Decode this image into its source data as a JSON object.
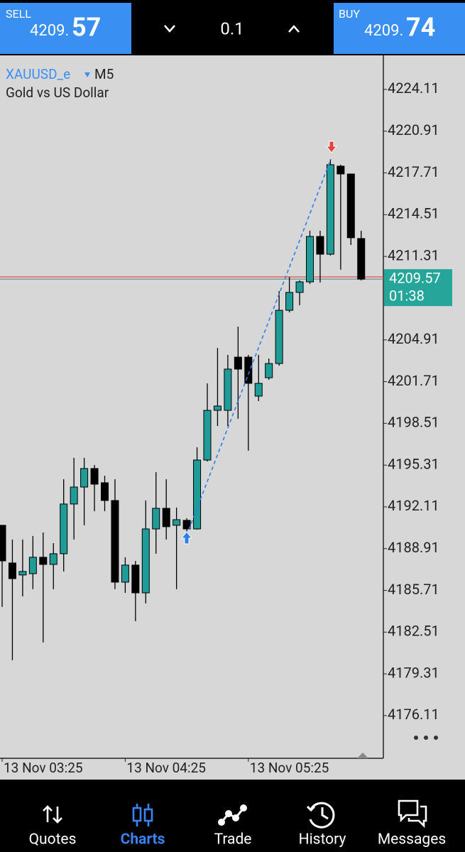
{
  "header": {
    "sell": {
      "label": "SELL",
      "price_prefix": "4209.",
      "price_suffix": "57"
    },
    "volume": "0.1",
    "buy": {
      "label": "BUY",
      "price_prefix": "4209.",
      "price_suffix": "74"
    }
  },
  "chart_data": {
    "type": "candlestick",
    "symbol": "XAUUSD_e",
    "timeframe": "M5",
    "description": "Gold vs US Dollar",
    "categories": [
      "13 Nov 03:25",
      null,
      null,
      null,
      null,
      null,
      null,
      null,
      null,
      null,
      null,
      null,
      "13 Nov 04:25",
      null,
      null,
      null,
      null,
      null,
      null,
      null,
      null,
      null,
      null,
      null,
      "13 Nov 05:25",
      null,
      null,
      null,
      null,
      null,
      null,
      null,
      null,
      null,
      null,
      null
    ],
    "open": [
      4190.7,
      4187.81,
      4186.89,
      4186.99,
      4188.25,
      4187.7,
      4188.52,
      4192.33,
      4193.63,
      4195.05,
      4193.96,
      4192.6,
      4186.34,
      4187.65,
      4185.52,
      4190.42,
      4192.0,
      4190.7,
      4191.08,
      4190.42,
      4195.7,
      4199.51,
      4199.51,
      4203.59,
      4203.59,
      4200.6,
      4202.01,
      4203.1,
      4207.18,
      4208.55,
      4209.36,
      4212.84,
      4211.48,
      4218.23,
      4217.63,
      4212.68
    ],
    "high": [
      4190.7,
      4189.61,
      4189.61,
      4189.88,
      4190.15,
      4189.33,
      4194.23,
      4195.87,
      4195.87,
      4195.32,
      4194.5,
      4194.23,
      4188.25,
      4187.97,
      4192.6,
      4194.78,
      4194.23,
      4192.06,
      4191.24,
      4196.68,
      4201.58,
      4204.3,
      4203.76,
      4205.93,
      4203.76,
      4203.76,
      4203.48,
      4208.65,
      4209.74,
      4209.47,
      4213.28,
      4213.28,
      4218.72,
      4218.34,
      4217.63,
      4213.28
    ],
    "low": [
      4184.44,
      4180.35,
      4185.25,
      4185.8,
      4181.72,
      4185.8,
      4187.16,
      4189.61,
      4190.7,
      4191.78,
      4191.78,
      4185.8,
      4185.52,
      4183.35,
      4184.71,
      4188.52,
      4189.61,
      4185.8,
      4190.15,
      4190.37,
      4195.59,
      4198.31,
      4198.31,
      4198.86,
      4196.41,
      4200.22,
      4201.85,
      4202.94,
      4207.02,
      4207.57,
      4209.2,
      4209.31,
      4211.38,
      4210.29,
      4212.19,
      4209.47
    ],
    "close": [
      4187.97,
      4186.61,
      4187.16,
      4188.25,
      4187.7,
      4188.52,
      4192.33,
      4193.63,
      4195.05,
      4193.85,
      4192.6,
      4186.34,
      4187.65,
      4185.52,
      4190.42,
      4192.0,
      4190.59,
      4191.13,
      4190.42,
      4195.7,
      4199.51,
      4199.84,
      4202.67,
      4202.67,
      4201.58,
      4201.58,
      4203.1,
      4207.18,
      4208.55,
      4209.36,
      4212.84,
      4211.48,
      4218.34,
      4217.63,
      4212.74,
      4209.57
    ],
    "up_color": "#1f9b98",
    "down_color": "#000000",
    "ylim": [
      4172.84,
      4226.72
    ],
    "yticks": [
      4224.11,
      4220.91,
      4217.71,
      4214.51,
      4211.31,
      4204.91,
      4201.71,
      4198.51,
      4195.31,
      4192.11,
      4188.91,
      4185.71,
      4182.51,
      4179.31,
      4176.11
    ],
    "current_price": {
      "value": 4209.57,
      "label": "4209.57"
    },
    "countdown": "01:38",
    "ask_line": 4209.74
  },
  "nav": {
    "items": [
      "Quotes",
      "Charts",
      "Trade",
      "History",
      "Messages"
    ],
    "active_index": 1
  }
}
